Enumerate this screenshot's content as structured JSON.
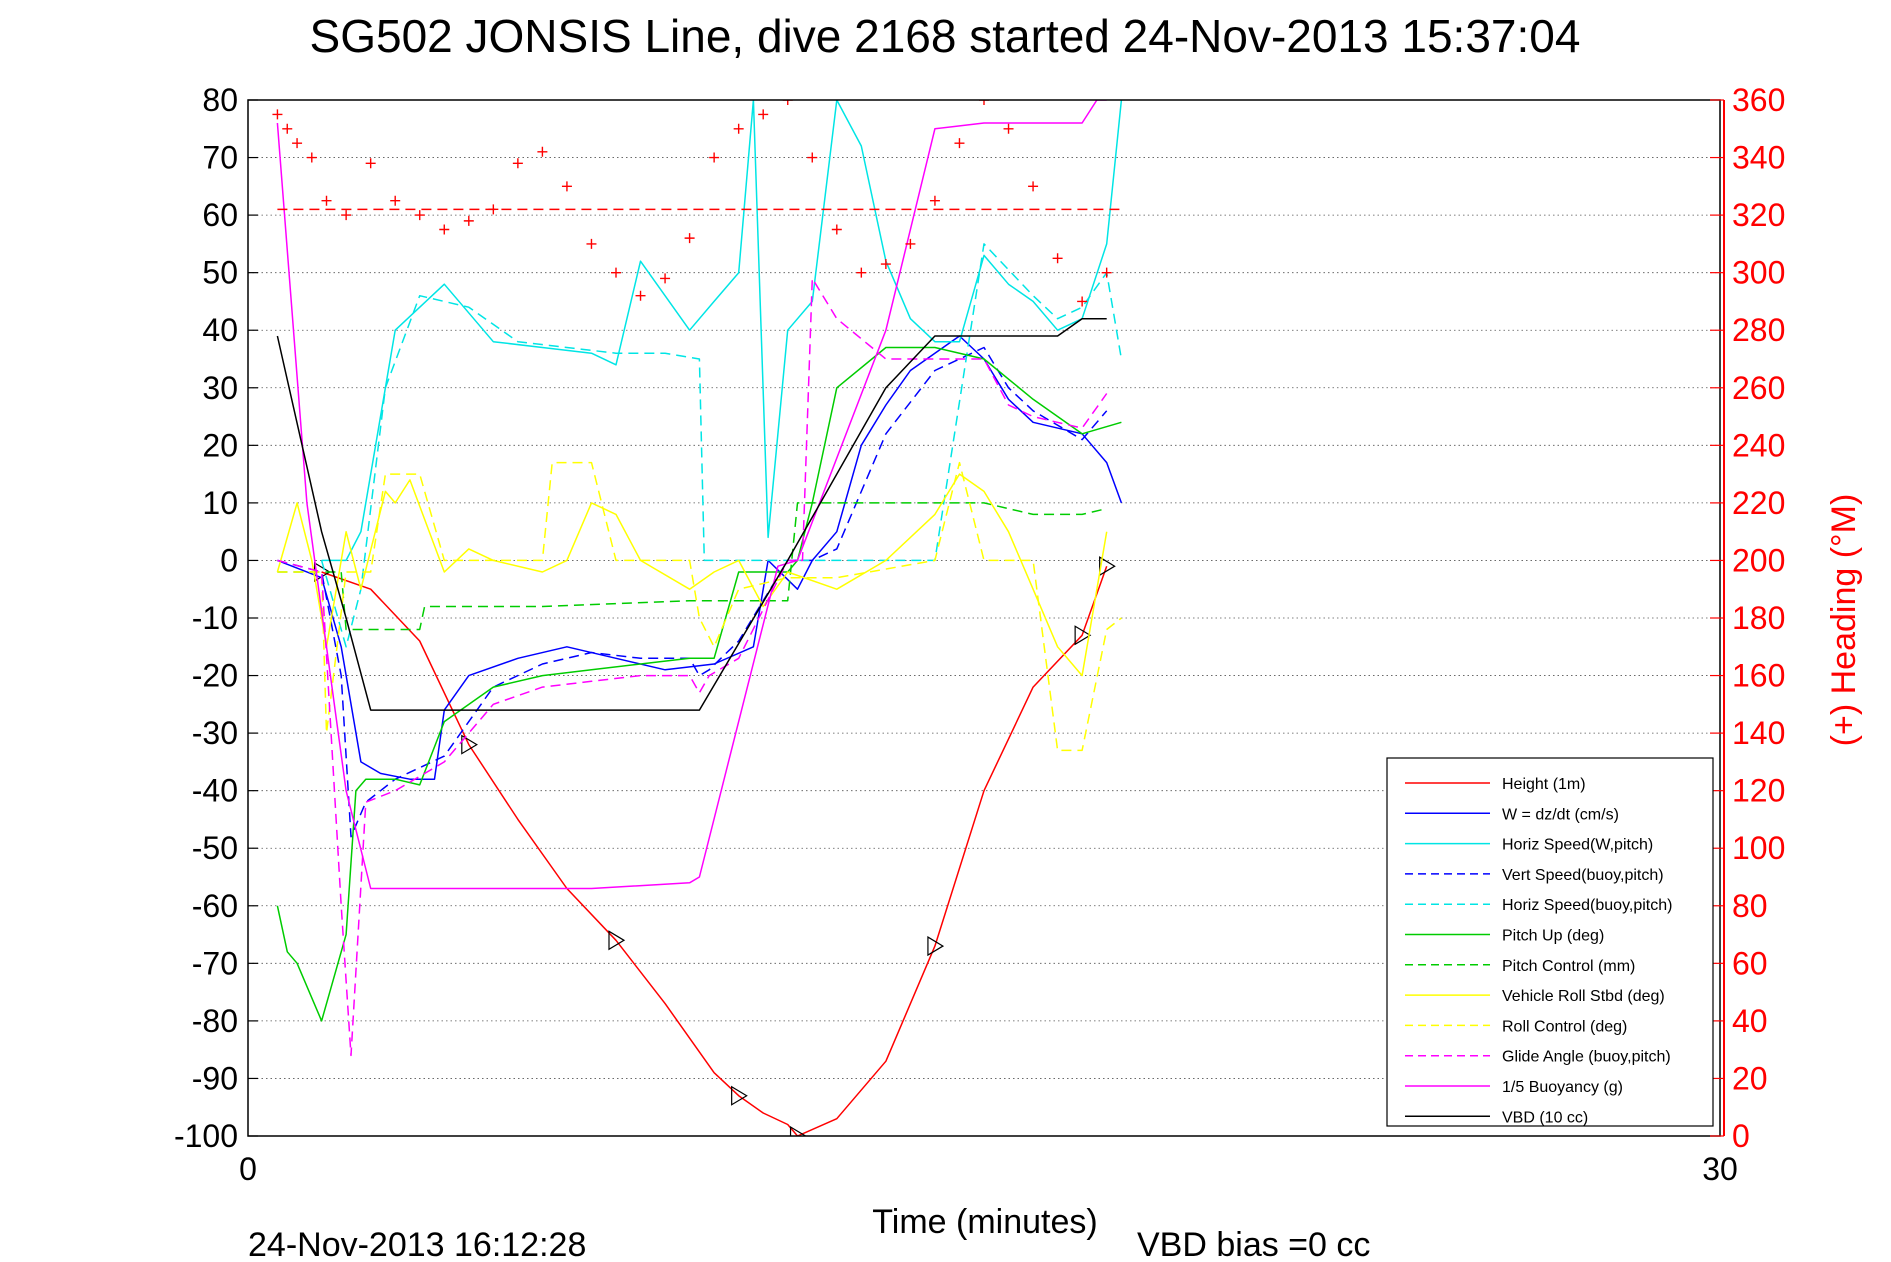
{
  "chart_data": {
    "type": "line",
    "title": "SG502 JONSIS Line, dive 2168 started 24-Nov-2013 15:37:04",
    "xlabel": "Time (minutes)",
    "ylabel": "",
    "ylabel_right": "(+) Heading (°M)",
    "xlim": [
      0,
      30
    ],
    "ylim": [
      -100,
      80
    ],
    "ylim_right": [
      0,
      360
    ],
    "x_ticks": [
      "0",
      "30"
    ],
    "y_ticks": [
      "80",
      "70",
      "60",
      "50",
      "40",
      "30",
      "20",
      "10",
      "0",
      "-10",
      "-20",
      "-30",
      "-40",
      "-50",
      "-60",
      "-70",
      "-80",
      "-90",
      "-100"
    ],
    "y_ticks_right": [
      "360",
      "340",
      "320",
      "300",
      "280",
      "260",
      "240",
      "220",
      "200",
      "180",
      "160",
      "140",
      "120",
      "100",
      "80",
      "60",
      "40",
      "20",
      "0"
    ],
    "grid": "horizontal dotted",
    "legend_position": "bottom-right",
    "footer_left": "24-Nov-2013 16:12:28",
    "footer_right": "VBD bias =0 cc",
    "series": [
      {
        "name": "Height (1m)",
        "color": "#ff0000",
        "dash": "solid",
        "axis": "left",
        "x": [
          1.5,
          2.5,
          3.5,
          4.5,
          5.5,
          6.5,
          7.5,
          8.5,
          9.5,
          10.0,
          10.5,
          11.0,
          11.2,
          12.0,
          13.0,
          14.0,
          15.0,
          16.0,
          17.0,
          17.5
        ],
        "y": [
          -2,
          -5,
          -14,
          -32,
          -45,
          -57,
          -66,
          -77,
          -89,
          -93,
          -96,
          -98,
          -100,
          -97,
          -87,
          -67,
          -40,
          -22,
          -13,
          -1
        ]
      },
      {
        "name": "W = dz/dt (cm/s)",
        "color": "#0000ff",
        "dash": "solid",
        "axis": "left",
        "x": [
          0.6,
          1.5,
          1.9,
          2.3,
          2.7,
          3.3,
          3.8,
          4.0,
          4.5,
          5.5,
          6.5,
          7.5,
          8.5,
          9.5,
          10.3,
          10.6,
          11.2,
          11.5,
          12.0,
          12.5,
          13.0,
          13.5,
          14.0,
          14.5,
          15.0,
          15.5,
          16.0,
          17.0,
          17.5,
          17.8
        ],
        "y": [
          0,
          -3,
          -15,
          -35,
          -37,
          -38,
          -38,
          -26,
          -20,
          -17,
          -15,
          -17,
          -19,
          -18,
          -15,
          0,
          -5,
          0,
          5,
          20,
          27,
          33,
          36,
          39,
          35,
          28,
          24,
          22,
          17,
          10
        ]
      },
      {
        "name": "Horiz Speed(W,pitch)",
        "color": "#00e5e5",
        "dash": "solid",
        "axis": "left",
        "x": [
          1.5,
          2.0,
          2.3,
          3.0,
          4.0,
          5.0,
          6.0,
          7.0,
          7.5,
          8.0,
          9.0,
          9.5,
          10.0,
          10.3,
          10.6,
          11.0,
          11.5,
          12.0,
          12.5,
          13.0,
          13.5,
          14.0,
          14.5,
          15.0,
          15.5,
          16.0,
          16.5,
          17.0,
          17.5,
          17.8
        ],
        "y": [
          0,
          0,
          5,
          40,
          48,
          38,
          37,
          36,
          34,
          52,
          40,
          45,
          50,
          80,
          4,
          40,
          45,
          80,
          72,
          52,
          42,
          38,
          38,
          53,
          48,
          45,
          40,
          42,
          55,
          80
        ]
      },
      {
        "name": "Vert Speed(buoy,pitch)",
        "color": "#0000ff",
        "dash": "dashed",
        "axis": "left",
        "x": [
          0.6,
          1.5,
          1.9,
          2.1,
          2.4,
          3.0,
          4.0,
          5.0,
          6.0,
          7.0,
          8.0,
          9.0,
          9.2,
          9.4,
          10.0,
          11.0,
          11.5,
          12.0,
          13.0,
          14.0,
          15.0,
          15.5,
          16.0,
          17.0,
          17.5
        ],
        "y": [
          0,
          -2,
          -20,
          -48,
          -42,
          -38,
          -34,
          -22,
          -18,
          -16,
          -17,
          -17,
          -20,
          -19,
          -14,
          0,
          0,
          2,
          22,
          33,
          37,
          30,
          26,
          21,
          26
        ]
      },
      {
        "name": "Horiz Speed(buoy,pitch)",
        "color": "#00e5e5",
        "dash": "dashed",
        "axis": "left",
        "x": [
          1.5,
          2.0,
          2.3,
          2.8,
          3.5,
          4.5,
          5.5,
          6.5,
          7.5,
          8.5,
          9.2,
          9.3,
          10.0,
          11.0,
          11.5,
          12.0,
          13.0,
          14.0,
          15.0,
          16.0,
          16.5,
          17.0,
          17.5,
          17.8
        ],
        "y": [
          0,
          -15,
          -5,
          30,
          46,
          44,
          38,
          37,
          36,
          36,
          35,
          0,
          0,
          0,
          0,
          0,
          0,
          0,
          55,
          46,
          42,
          44,
          50,
          35
        ]
      },
      {
        "name": "Pitch Up (deg)",
        "color": "#00cc00",
        "dash": "solid",
        "axis": "left",
        "x": [
          0.6,
          0.8,
          1.0,
          1.5,
          2.0,
          2.2,
          2.4,
          3.0,
          3.5,
          4.0,
          5.0,
          6.0,
          7.0,
          8.0,
          9.0,
          9.5,
          10.0,
          11.0,
          11.2,
          11.5,
          12.0,
          13.0,
          14.0,
          15.0,
          16.0,
          17.0,
          17.8
        ],
        "y": [
          -60,
          -68,
          -70,
          -80,
          -65,
          -40,
          -38,
          -38,
          -39,
          -28,
          -22,
          -20,
          -19,
          -18,
          -17,
          -17,
          -2,
          -2,
          0,
          10,
          30,
          37,
          37,
          35,
          28,
          22,
          24
        ]
      },
      {
        "name": "Pitch Control (mm)",
        "color": "#00cc00",
        "dash": "dashed",
        "axis": "left",
        "x": [
          0.6,
          1.5,
          1.9,
          2.0,
          3.5,
          3.6,
          6.0,
          9.0,
          11.0,
          11.2,
          12.0,
          13.0,
          14.0,
          15.0,
          16.0,
          17.0,
          17.5
        ],
        "y": [
          -2,
          -2,
          -2,
          -12,
          -12,
          -8,
          -8,
          -7,
          -7,
          10,
          10,
          10,
          10,
          10,
          8,
          8,
          9
        ]
      },
      {
        "name": "Vehicle Roll Stbd (deg)",
        "color": "#ffff00",
        "dash": "solid",
        "axis": "left",
        "x": [
          0.6,
          1.0,
          1.3,
          1.6,
          2.0,
          2.3,
          2.8,
          3.0,
          3.3,
          4.0,
          4.5,
          5.0,
          6.0,
          6.5,
          7.0,
          7.5,
          8.0,
          9.0,
          9.5,
          10.0,
          10.5,
          11.0,
          12.0,
          13.0,
          14.0,
          14.5,
          15.0,
          15.5,
          16.0,
          16.5,
          17.0,
          17.5
        ],
        "y": [
          -2,
          10,
          0,
          -15,
          5,
          -5,
          12,
          10,
          14,
          -2,
          2,
          0,
          -2,
          0,
          10,
          8,
          0,
          -5,
          -2,
          0,
          -8,
          -2,
          -5,
          0,
          8,
          15,
          12,
          5,
          -5,
          -15,
          -20,
          5
        ]
      },
      {
        "name": "Roll Control (deg)",
        "color": "#ffff00",
        "dash": "dashed",
        "axis": "left",
        "x": [
          0.6,
          1.5,
          1.6,
          2.0,
          2.5,
          2.8,
          3.5,
          4.0,
          6.0,
          6.2,
          7.0,
          7.5,
          8.0,
          9.0,
          9.2,
          9.5,
          10.0,
          11.0,
          11.5,
          12.0,
          14.0,
          14.5,
          15.0,
          16.0,
          16.5,
          17.0,
          17.5,
          17.8
        ],
        "y": [
          -2,
          -2,
          -30,
          -2,
          -2,
          15,
          15,
          0,
          0,
          17,
          17,
          0,
          0,
          0,
          -10,
          -15,
          -5,
          -3,
          -3,
          -3,
          0,
          17,
          0,
          0,
          -33,
          -33,
          -12,
          -10
        ]
      },
      {
        "name": "Glide Angle (buoy,pitch)",
        "color": "#ff00ff",
        "dash": "dashed",
        "axis": "left",
        "x": [
          0.6,
          1.5,
          1.9,
          2.1,
          2.4,
          3.0,
          4.0,
          5.0,
          6.0,
          7.0,
          8.0,
          9.0,
          9.2,
          9.4,
          10.0,
          11.0,
          11.3,
          11.5,
          12.0,
          13.0,
          14.0,
          15.0,
          15.5,
          16.0,
          17.0,
          17.5
        ],
        "y": [
          0,
          -2,
          -60,
          -86,
          -42,
          -40,
          -35,
          -25,
          -22,
          -21,
          -20,
          -20,
          -23,
          -20,
          -17,
          0,
          0,
          49,
          42,
          35,
          35,
          35,
          27,
          25,
          23,
          29
        ]
      },
      {
        "name": "1/5 Buoyancy (g)",
        "color": "#ff00ff",
        "dash": "solid",
        "axis": "left",
        "x": [
          0.6,
          1.2,
          2.0,
          2.5,
          7.0,
          9.0,
          9.2,
          10.8,
          11.2,
          13.0,
          14.0,
          15.0,
          17.0,
          17.3,
          17.5
        ],
        "y": [
          76,
          10,
          -40,
          -57,
          -57,
          -56,
          -55,
          -1,
          0,
          40,
          75,
          76,
          76,
          80,
          80
        ]
      },
      {
        "name": "VBD (10 cc)",
        "color": "#000000",
        "dash": "solid",
        "axis": "left",
        "x": [
          0.6,
          1.5,
          2.0,
          2.5,
          4.0,
          9.0,
          9.2,
          11.0,
          13.0,
          14.0,
          15.0,
          16.5,
          17.0,
          17.5
        ],
        "y": [
          39,
          5,
          -10,
          -26,
          -26,
          -26,
          -26,
          0,
          30,
          39,
          39,
          39,
          42,
          42
        ]
      },
      {
        "name": "Heading",
        "color": "#ff0000",
        "dash": "none",
        "marker": "plus",
        "axis": "right",
        "legend": false,
        "x": [
          0.6,
          0.8,
          1.0,
          1.3,
          1.6,
          2.0,
          2.5,
          3.0,
          3.5,
          4.0,
          4.5,
          5.0,
          5.5,
          6.0,
          6.5,
          7.0,
          7.5,
          8.0,
          8.5,
          9.0,
          9.5,
          10.0,
          10.5,
          11.0,
          11.5,
          12.0,
          12.5,
          13.0,
          13.5,
          14.0,
          14.5,
          15.0,
          15.5,
          16.0,
          16.5,
          17.0,
          17.5
        ],
        "y": [
          355,
          350,
          345,
          340,
          325,
          320,
          338,
          325,
          320,
          315,
          318,
          322,
          338,
          342,
          330,
          310,
          300,
          292,
          298,
          312,
          340,
          350,
          355,
          360,
          340,
          315,
          300,
          303,
          310,
          325,
          345,
          360,
          350,
          330,
          305,
          290,
          300
        ]
      },
      {
        "name": "Heading target",
        "color": "#ff0000",
        "dash": "dashed",
        "axis": "right",
        "legend": false,
        "x": [
          0.6,
          17.8
        ],
        "y": [
          322,
          322
        ]
      }
    ]
  }
}
